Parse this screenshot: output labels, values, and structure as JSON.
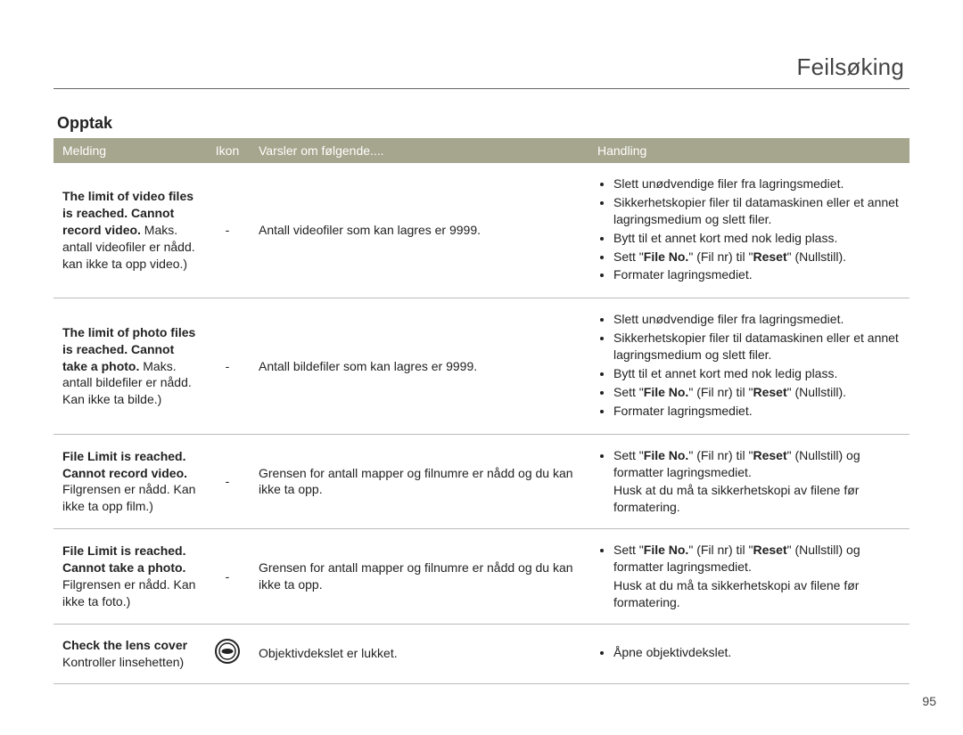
{
  "page": {
    "chapter_title": "Feilsøking",
    "section_title": "Opptak",
    "page_number": "95"
  },
  "table": {
    "header_bg": "#a6a58d",
    "header_fg": "#ffffff",
    "border_color": "#bbbbbb",
    "columns": {
      "melding": "Melding",
      "ikon": "Ikon",
      "varsler": "Varsler om følgende....",
      "handling": "Handling"
    },
    "rows": [
      {
        "melding_bold": "The limit of video files is reached. Cannot record video.",
        "melding_rest": " Maks. antall videofiler er nådd. kan ikke ta opp video.)",
        "ikon": "-",
        "varsler": "Antall videofiler som kan lagres er 9999.",
        "handling_list": [
          "Slett unødvendige filer fra lagringsmediet.",
          "Sikkerhetskopier filer til datamaskinen eller et annet lagringsmedium og slett filer.",
          "Bytt til et annet kort med nok ledig plass.",
          "Sett \"File No.\" (Fil nr) til \"Reset\" (Nullstill).",
          "Formater lagringsmediet."
        ],
        "handling_note": ""
      },
      {
        "melding_bold": "The limit of photo files is reached. Cannot take a photo.",
        "melding_rest": " Maks. antall bildefiler er nådd. Kan ikke ta bilde.)",
        "ikon": "-",
        "varsler": "Antall bildefiler som kan lagres er 9999.",
        "handling_list": [
          "Slett unødvendige filer fra lagringsmediet.",
          "Sikkerhetskopier filer til datamaskinen eller et annet lagringsmedium og slett filer.",
          "Bytt til et annet kort med nok ledig plass.",
          "Sett \"File No.\" (Fil nr) til \"Reset\" (Nullstill).",
          "Formater lagringsmediet."
        ],
        "handling_note": ""
      },
      {
        "melding_bold": "File Limit is reached. Cannot record video.",
        "melding_rest": " Filgrensen er nådd. Kan ikke ta opp film.)",
        "ikon": "-",
        "varsler": "Grensen for antall mapper og filnumre er nådd og du kan ikke ta opp.",
        "handling_list": [
          "Sett \"File No.\" (Fil nr) til \"Reset\" (Nullstill) og formatter lagringsmediet."
        ],
        "handling_note": "Husk at du må ta sikkerhetskopi av filene før formatering."
      },
      {
        "melding_bold": "File Limit is reached. Cannot take a photo.",
        "melding_rest": " Filgrensen er nådd. Kan ikke ta foto.)",
        "ikon": "-",
        "varsler": "Grensen for antall mapper og filnumre er nådd og du kan ikke ta opp.",
        "handling_list": [
          "Sett \"File No.\" (Fil nr) til \"Reset\" (Nullstill) og formatter lagringsmediet."
        ],
        "handling_note": "Husk at du må ta sikkerhetskopi av filene før formatering."
      },
      {
        "melding_bold": "Check the lens cover",
        "melding_rest": " Kontroller linsehetten)",
        "ikon": "lens-cap",
        "varsler": "Objektivdekslet er lukket.",
        "handling_list": [
          "Åpne objektivdekslet."
        ],
        "handling_note": ""
      }
    ]
  }
}
